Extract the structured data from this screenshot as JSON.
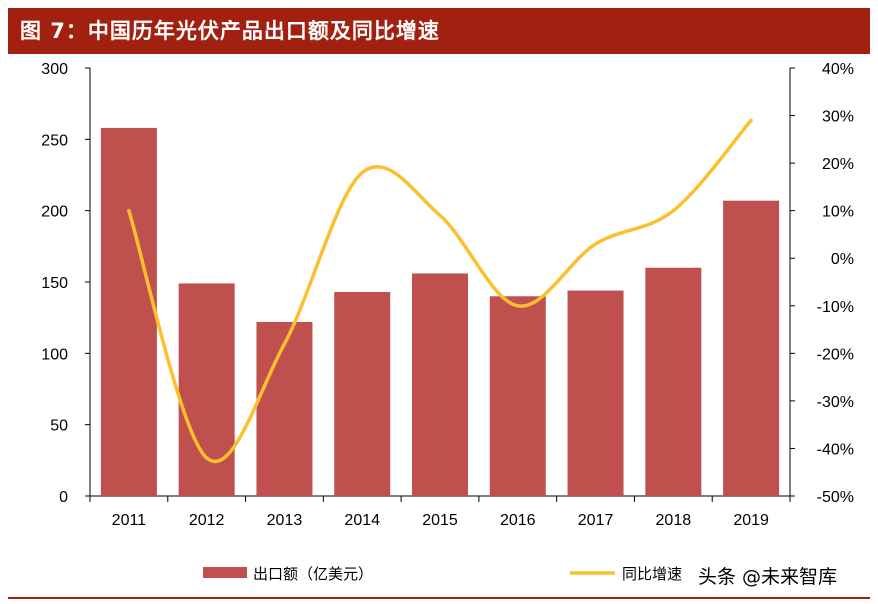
{
  "title": "图 7：中国历年光伏产品出口额及同比增速",
  "watermark": "头条 @未来智库",
  "colors": {
    "title_bg": "#a2200f",
    "bar": "#c0504d",
    "line": "#fbc02d"
  },
  "chart_data": {
    "type": "bar",
    "categories": [
      "2011",
      "2012",
      "2013",
      "2014",
      "2015",
      "2016",
      "2017",
      "2018",
      "2019"
    ],
    "y_left": {
      "min": 0,
      "max": 300,
      "ticks": [
        "300",
        "250",
        "200",
        "150",
        "100",
        "50",
        "0"
      ]
    },
    "y_right": {
      "min": -50,
      "max": 40,
      "ticks": [
        "40%",
        "30%",
        "20%",
        "10%",
        "0%",
        "-10%",
        "-20%",
        "-30%",
        "-40%",
        "-50%"
      ]
    },
    "series": [
      {
        "name": "出口额（亿美元）",
        "type": "bar",
        "axis": "left",
        "values": [
          258,
          149,
          122,
          143,
          156,
          140,
          144,
          160,
          207
        ]
      },
      {
        "name": "同比增速",
        "type": "line",
        "axis": "right",
        "values": [
          10,
          -42,
          -18,
          18,
          9,
          -10,
          3,
          10,
          29
        ]
      }
    ]
  }
}
